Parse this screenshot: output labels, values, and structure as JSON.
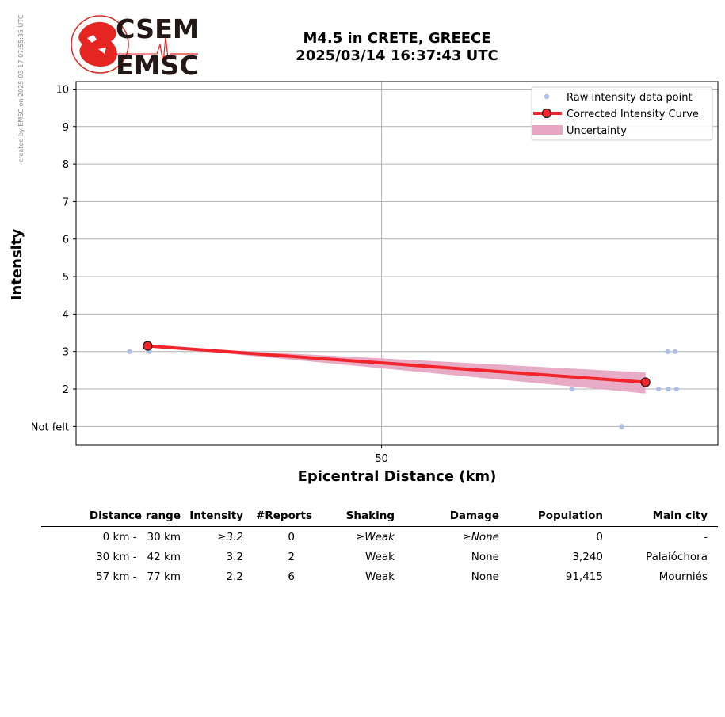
{
  "watermark": "created by EMSC on 2025-03-17 07:55:35 UTC",
  "logo": {
    "top": "CSEM",
    "bottom": "EMSC",
    "red": "#e52521",
    "dark": "#231815"
  },
  "title": {
    "line1": "M4.5 in CRETE, GREECE",
    "line2": "2025/03/14 16:37:43 UTC"
  },
  "chart_data": {
    "type": "line",
    "xlabel": "Epicentral Distance (km)",
    "ylabel": "Intensity",
    "x_scale": "log",
    "xlim": [
      30.1,
      87.4
    ],
    "ylim": [
      0.5,
      10.2
    ],
    "x_ticks": [
      {
        "value": 50,
        "label": "50"
      }
    ],
    "y_ticks": [
      {
        "value": 1,
        "label": "Not felt"
      },
      {
        "value": 2,
        "label": "2"
      },
      {
        "value": 3,
        "label": "3"
      },
      {
        "value": 4,
        "label": "4"
      },
      {
        "value": 5,
        "label": "5"
      },
      {
        "value": 6,
        "label": "6"
      },
      {
        "value": 7,
        "label": "7"
      },
      {
        "value": 8,
        "label": "8"
      },
      {
        "value": 9,
        "label": "9"
      },
      {
        "value": 10,
        "label": "10"
      }
    ],
    "grid": true,
    "legend_position": "top-right",
    "raw_points": [
      {
        "x": 32.9,
        "y": 3
      },
      {
        "x": 34.0,
        "y": 3
      },
      {
        "x": 68.6,
        "y": 2
      },
      {
        "x": 74.5,
        "y": 1
      },
      {
        "x": 79.2,
        "y": 2
      },
      {
        "x": 80.4,
        "y": 3
      },
      {
        "x": 80.5,
        "y": 2
      },
      {
        "x": 81.4,
        "y": 3
      },
      {
        "x": 81.6,
        "y": 2
      }
    ],
    "curve": [
      {
        "x": 33.9,
        "y": 3.15
      },
      {
        "x": 77.5,
        "y": 2.18
      }
    ],
    "uncertainty": {
      "x": [
        33.9,
        77.5
      ],
      "lower": [
        3.15,
        1.88
      ],
      "upper": [
        3.15,
        2.44
      ]
    },
    "legend": [
      {
        "label": "Raw intensity data point",
        "kind": "point"
      },
      {
        "label": "Corrected Intensity Curve",
        "kind": "curve"
      },
      {
        "label": "Uncertainty",
        "kind": "band"
      }
    ],
    "colors": {
      "raw": "#aebfe8",
      "curve": "#f2252c",
      "band": "#e7a6c2",
      "grid": "#b0b0b0"
    }
  },
  "table": {
    "headers": [
      "Distance range",
      "Intensity",
      "#Reports",
      "Shaking",
      "Damage",
      "Population",
      "Main city"
    ],
    "rows": [
      {
        "range": "0 km -   30 km",
        "intensity": "≥3.2",
        "reports": "0",
        "shaking": "≥Weak",
        "damage": "≥None",
        "population": "0",
        "city": "-",
        "italic": true
      },
      {
        "range": "30 km -   42 km",
        "intensity": "3.2",
        "reports": "2",
        "shaking": "Weak",
        "damage": "None",
        "population": "3,240",
        "city": "Palaióchora",
        "italic": false
      },
      {
        "range": "57 km -   77 km",
        "intensity": "2.2",
        "reports": "6",
        "shaking": "Weak",
        "damage": "None",
        "population": "91,415",
        "city": "Mourniés",
        "italic": false
      }
    ]
  }
}
